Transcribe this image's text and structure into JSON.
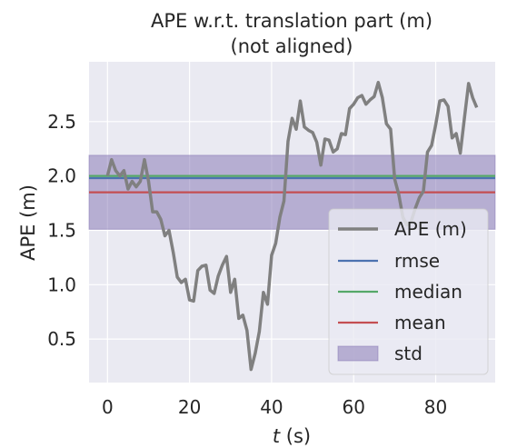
{
  "chart_data": {
    "type": "line",
    "title": "APE w.r.t. translation part (m)",
    "subtitle": "(not aligned)",
    "xlabel_var": "t",
    "xlabel_unit": " (s)",
    "ylabel": "APE (m)",
    "xlim": [
      -4.5,
      94.5
    ],
    "ylim": [
      0.1,
      3.05
    ],
    "x_ticks": [
      0,
      20,
      40,
      60,
      80
    ],
    "y_ticks": [
      0.5,
      1.0,
      1.5,
      2.0,
      2.5
    ],
    "x_tick_labels": [
      "0",
      "20",
      "40",
      "60",
      "80"
    ],
    "y_tick_labels": [
      "0.5",
      "1.0",
      "1.5",
      "2.0",
      "2.5"
    ],
    "grid": true,
    "legend_position": "lower-right",
    "stats": {
      "rmse": 1.98,
      "median": 2.0,
      "mean": 1.85,
      "std_band": [
        1.51,
        2.19
      ]
    },
    "legend": [
      "APE (m)",
      "rmse",
      "median",
      "mean",
      "std"
    ],
    "colors": {
      "ape": "#808080",
      "rmse": "#4c72b0",
      "median": "#55a868",
      "mean": "#c44e52",
      "std": "#8172b2",
      "background": "#eaeaf2",
      "grid": "#ffffff"
    },
    "series": [
      {
        "name": "APE (m)",
        "x": [
          0,
          1,
          2,
          3,
          4,
          5,
          6,
          7,
          8,
          9,
          10,
          11,
          12,
          13,
          14,
          15,
          16,
          17,
          18,
          19,
          20,
          21,
          22,
          23,
          24,
          25,
          26,
          27,
          28,
          29,
          30,
          31,
          32,
          33,
          34,
          35,
          36,
          37,
          38,
          39,
          40,
          41,
          42,
          43,
          44,
          45,
          46,
          47,
          48,
          49,
          50,
          51,
          52,
          53,
          54,
          55,
          56,
          57,
          58,
          59,
          60,
          61,
          62,
          63,
          64,
          65,
          66,
          67,
          68,
          69,
          70,
          71,
          72,
          73,
          74,
          75,
          76,
          77,
          78,
          79,
          80,
          81,
          82,
          83,
          84,
          85,
          86,
          87,
          88,
          89,
          90
        ],
        "values": [
          2.0,
          2.15,
          2.05,
          2.0,
          2.05,
          1.88,
          1.95,
          1.9,
          1.95,
          2.15,
          1.95,
          1.67,
          1.67,
          1.6,
          1.45,
          1.5,
          1.3,
          1.07,
          1.02,
          1.05,
          0.86,
          0.85,
          1.13,
          1.17,
          1.18,
          0.95,
          0.92,
          1.08,
          1.18,
          1.26,
          0.93,
          1.05,
          0.69,
          0.72,
          0.58,
          0.22,
          0.37,
          0.57,
          0.93,
          0.82,
          1.27,
          1.38,
          1.62,
          1.77,
          2.32,
          2.53,
          2.43,
          2.69,
          2.45,
          2.42,
          2.4,
          2.31,
          2.1,
          2.34,
          2.33,
          2.22,
          2.25,
          2.39,
          2.38,
          2.62,
          2.66,
          2.72,
          2.74,
          2.66,
          2.7,
          2.73,
          2.86,
          2.72,
          2.48,
          2.43,
          1.97,
          1.83,
          1.62,
          1.55,
          1.58,
          1.7,
          1.8,
          1.86,
          2.22,
          2.28,
          2.47,
          2.69,
          2.7,
          2.64,
          2.35,
          2.39,
          2.21,
          2.53,
          2.85,
          2.72,
          2.63
        ]
      }
    ]
  }
}
